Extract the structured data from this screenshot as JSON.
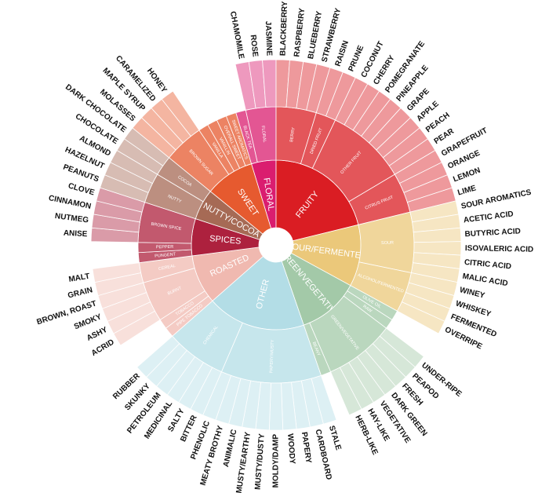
{
  "wheel": {
    "children": [
      {
        "label": "FLORAL",
        "color": "#da1d6f",
        "children": [
          {
            "label": "BLACK TEA"
          },
          {
            "label": "FLORAL",
            "children": [
              {
                "label": "CHAMOMILE"
              },
              {
                "label": "ROSE"
              },
              {
                "label": "JASMINE"
              }
            ]
          }
        ]
      },
      {
        "label": "FRUITY",
        "color": "#da1d23",
        "children": [
          {
            "label": "BERRY",
            "children": [
              {
                "label": "BLACKBERRY"
              },
              {
                "label": "RASPBERRY"
              },
              {
                "label": "BLUEBERRY"
              },
              {
                "label": "STRAWBERRY"
              }
            ]
          },
          {
            "label": "DRIED FRUIT",
            "children": [
              {
                "label": "RAISIN"
              },
              {
                "label": "PRUNE"
              }
            ]
          },
          {
            "label": "OTHER FRUIT",
            "children": [
              {
                "label": "COCONUT"
              },
              {
                "label": "CHERRY"
              },
              {
                "label": "POMEGRANATE"
              },
              {
                "label": "PINEAPPLE"
              },
              {
                "label": "GRAPE"
              },
              {
                "label": "APPLE"
              },
              {
                "label": "PEACH"
              },
              {
                "label": "PEAR"
              }
            ]
          },
          {
            "label": "CITRUS FRUIT",
            "children": [
              {
                "label": "GRAPEFRUIT"
              },
              {
                "label": "ORANGE"
              },
              {
                "label": "LEMON"
              },
              {
                "label": "LIME"
              }
            ]
          }
        ]
      },
      {
        "label": "SOUR/FERMENTED",
        "color": "#ebc87a",
        "children": [
          {
            "label": "SOUR",
            "children": [
              {
                "label": "SOUR AROMATICS"
              },
              {
                "label": "ACETIC ACID"
              },
              {
                "label": "BUTYRIC ACID"
              },
              {
                "label": "ISOVALERIC ACID"
              },
              {
                "label": "CITRIC ACID"
              },
              {
                "label": "MALIC ACID"
              }
            ]
          },
          {
            "label": "ALCOHOL/FERMENTED",
            "children": [
              {
                "label": "WINEY"
              },
              {
                "label": "WHISKEY"
              },
              {
                "label": "FERMENTED"
              },
              {
                "label": "OVERRIPE"
              }
            ]
          }
        ]
      },
      {
        "label": "GREEN/VEGETATIVE",
        "color": "#a3c9a8",
        "children": [
          {
            "label": "OLIVE OIL"
          },
          {
            "label": "RAW"
          },
          {
            "label": "GREEN/VEGETATIVE",
            "children": [
              {
                "label": "UNDER-RIPE"
              },
              {
                "label": "PEAPOD"
              },
              {
                "label": "FRESH"
              },
              {
                "label": "DARK GREEN"
              },
              {
                "label": "VEGETATIVE"
              },
              {
                "label": "HAY-LIKE"
              },
              {
                "label": "HERB-LIKE"
              }
            ]
          },
          {
            "label": "BEANY"
          }
        ]
      },
      {
        "label": "OTHER",
        "color": "#b3dde6",
        "children": [
          {
            "label": "PAPERY/MUSTY",
            "children": [
              {
                "label": "STALE"
              },
              {
                "label": "CARDBOARD"
              },
              {
                "label": "PAPERY"
              },
              {
                "label": "WOODY"
              },
              {
                "label": "MOLDY/DAMP"
              },
              {
                "label": "MUSTY/DUSTY"
              },
              {
                "label": "MUSTY/EARTHY"
              },
              {
                "label": "ANIMALIC"
              },
              {
                "label": "MEATY BROTHY"
              },
              {
                "label": "PHENOLIC"
              }
            ]
          },
          {
            "label": "CHEMICAL",
            "children": [
              {
                "label": "BITTER"
              },
              {
                "label": "SALTY"
              },
              {
                "label": "MEDICINAL"
              },
              {
                "label": "PETROLEUM"
              },
              {
                "label": "SKUNKY"
              },
              {
                "label": "RUBBER"
              }
            ]
          }
        ]
      },
      {
        "label": "ROASTED",
        "color": "#f0b9b0",
        "children": [
          {
            "label": "PIPE TOBACCO"
          },
          {
            "label": "TOBACCO"
          },
          {
            "label": "BURNT",
            "children": [
              {
                "label": "ACRID"
              },
              {
                "label": "ASHY"
              },
              {
                "label": "SMOKY"
              },
              {
                "label": "BROWN, ROAST"
              }
            ]
          },
          {
            "label": "CEREAL",
            "children": [
              {
                "label": "GRAIN"
              },
              {
                "label": "MALT"
              }
            ]
          }
        ]
      },
      {
        "label": "SPICES",
        "color": "#ad213e",
        "children": [
          {
            "label": "PUNGENT"
          },
          {
            "label": "PEPPER"
          },
          {
            "label": "BROWN SPICE",
            "children": [
              {
                "label": "ANISE"
              },
              {
                "label": "NUTMEG"
              },
              {
                "label": "CINNAMON"
              },
              {
                "label": "CLOVE"
              }
            ]
          }
        ]
      },
      {
        "label": "NUTTY/COCOA",
        "color": "#a66a55",
        "children": [
          {
            "label": "NUTTY",
            "children": [
              {
                "label": "PEANUTS"
              },
              {
                "label": "HAZELNUT"
              },
              {
                "label": "ALMOND"
              }
            ]
          },
          {
            "label": "COCOA",
            "children": [
              {
                "label": "CHOCOLATE"
              },
              {
                "label": "DARK CHOCOLATE"
              }
            ]
          }
        ]
      },
      {
        "label": "SWEET",
        "color": "#e65a2f",
        "children": [
          {
            "label": "BROWN SUGAR",
            "children": [
              {
                "label": "MOLASSES"
              },
              {
                "label": "MAPLE SYRUP"
              },
              {
                "label": "CARAMELIZED"
              },
              {
                "label": "HONEY"
              }
            ]
          },
          {
            "label": "VANILLA"
          },
          {
            "label": "VANILLIN"
          },
          {
            "label": "OVERALL SWEET"
          },
          {
            "label": "SWEET AROMATICS"
          }
        ]
      }
    ]
  }
}
